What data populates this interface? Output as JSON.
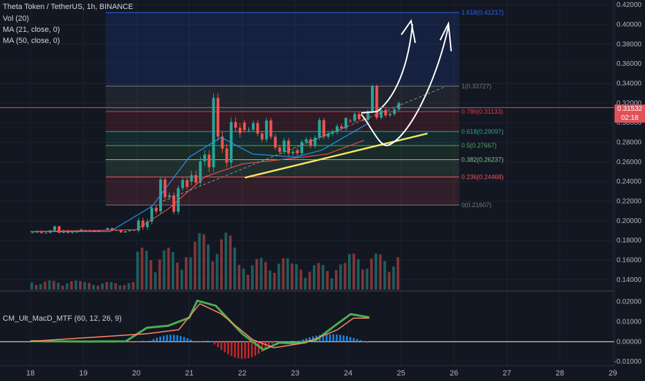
{
  "header": {
    "title": "Theta Token / TetherUS, 1h, BINANCE",
    "indicators": [
      "Vol (20)",
      "MA (21, close, 0)",
      "MA (50, close, 0)"
    ],
    "macd_label": "CM_Ult_MacD_MTF (60, 12, 26, 9)"
  },
  "price_tag": {
    "price": "0.31532",
    "countdown": "02:18"
  },
  "colors": {
    "background": "#131722",
    "up": "#26a69a",
    "down": "#ef5350",
    "ma21": "#2196f3",
    "ma50": "#e94d4d",
    "trendline": "#f5e663",
    "fib_1618": "#2962ff",
    "fib_1": "#787b86",
    "fib_0786": "#f23645",
    "fib_0618": "#22ab94",
    "fib_05": "#4caf50",
    "fib_0382": "#81c784",
    "fib_0236": "#f7525f",
    "fib_0": "#787b86"
  },
  "chart_data": [
    {
      "type": "candlestick",
      "title": "Theta Token / TetherUS, 1h, BINANCE",
      "x_axis": {
        "ticks": [
          "18",
          "19",
          "20",
          "21",
          "22",
          "23",
          "24",
          "25",
          "26",
          "27",
          "28",
          "29"
        ]
      },
      "y_axis": {
        "range": [
          0.13,
          0.425
        ],
        "ticks": [
          "0.42000",
          "0.40000",
          "0.38000",
          "0.36000",
          "0.34000",
          "0.32000",
          "0.30000",
          "0.28000",
          "0.26000",
          "0.24000",
          "0.22000",
          "0.20000",
          "0.18000",
          "0.16000",
          "0.14000"
        ]
      },
      "last_price": 0.31532,
      "ohlc_daily_approx": [
        {
          "day": "18",
          "open": 0.188,
          "high": 0.195,
          "low": 0.183,
          "close": 0.19
        },
        {
          "day": "19",
          "open": 0.19,
          "high": 0.193,
          "low": 0.186,
          "close": 0.19
        },
        {
          "day": "20",
          "open": 0.19,
          "high": 0.245,
          "low": 0.188,
          "close": 0.24
        },
        {
          "day": "21",
          "open": 0.24,
          "high": 0.33,
          "low": 0.236,
          "close": 0.3
        },
        {
          "day": "22",
          "open": 0.3,
          "high": 0.305,
          "low": 0.25,
          "close": 0.272
        },
        {
          "day": "23",
          "open": 0.272,
          "high": 0.305,
          "low": 0.256,
          "close": 0.302
        },
        {
          "day": "24",
          "open": 0.302,
          "high": 0.339,
          "low": 0.3,
          "close": 0.3153
        }
      ],
      "fibonacci": [
        {
          "level": "1.618",
          "price": 0.41217,
          "label": "1.618(0.41217)"
        },
        {
          "level": "1",
          "price": 0.33727,
          "label": "1(0.33727)"
        },
        {
          "level": "0.786",
          "price": 0.31133,
          "label": "0.786(0.31133)"
        },
        {
          "level": "0.618",
          "price": 0.29097,
          "label": "0.618(0.29097)"
        },
        {
          "level": "0.5",
          "price": 0.27667,
          "label": "0.5(0.27667)"
        },
        {
          "level": "0.382",
          "price": 0.26237,
          "label": "0.382(0.26237)"
        },
        {
          "level": "0.236",
          "price": 0.24468,
          "label": "0.236(0.24468)"
        },
        {
          "level": "0",
          "price": 0.21607,
          "label": "0(0.21607)"
        }
      ],
      "moving_averages": [
        {
          "name": "MA (21, close, 0)",
          "points": [
            [
              0,
              0.189
            ],
            [
              1.5,
              0.189
            ],
            [
              2.3,
              0.215
            ],
            [
              3,
              0.265
            ],
            [
              3.6,
              0.285
            ],
            [
              4.2,
              0.268
            ],
            [
              5,
              0.265
            ],
            [
              5.5,
              0.272
            ],
            [
              6.4,
              0.3
            ]
          ]
        },
        {
          "name": "MA (50, close, 0)",
          "points": [
            [
              0,
              0.189
            ],
            [
              2,
              0.191
            ],
            [
              2.6,
              0.212
            ],
            [
              3.3,
              0.245
            ],
            [
              4,
              0.258
            ],
            [
              5,
              0.264
            ],
            [
              5.6,
              0.268
            ],
            [
              6.3,
              0.282
            ]
          ]
        }
      ],
      "annotations": [
        {
          "type": "trendline",
          "from": [
            4.05,
            0.244
          ],
          "to": [
            7.5,
            0.289
          ]
        },
        {
          "type": "dashed_extension",
          "from": [
            2.5,
            0.22
          ],
          "to": [
            7.85,
            0.337
          ]
        },
        {
          "type": "projection_arrows",
          "note": "hand-drawn upward arrows"
        }
      ]
    },
    {
      "type": "bar",
      "title": "Vol (20)",
      "volume_daily_relative": [
        0.12,
        0.1,
        0.55,
        0.75,
        0.42,
        0.35,
        0.48
      ]
    },
    {
      "type": "line",
      "title": "CM_Ult_MacD_MTF (60, 12, 26, 9)",
      "y_axis": {
        "range": [
          -0.012,
          0.024
        ],
        "ticks": [
          "0.02000",
          "0.01000",
          "0.00000",
          "-0.01000"
        ]
      },
      "macd_points": [
        [
          0,
          0.0003
        ],
        [
          1,
          0.0001
        ],
        [
          1.8,
          0.0002
        ],
        [
          2.2,
          0.007
        ],
        [
          2.6,
          0.008
        ],
        [
          3,
          0.012
        ],
        [
          3.15,
          0.0205
        ],
        [
          3.5,
          0.018
        ],
        [
          4,
          0.004
        ],
        [
          4.4,
          -0.004
        ],
        [
          4.7,
          -0.0005
        ],
        [
          5,
          -0.0008
        ],
        [
          5.4,
          0.001
        ],
        [
          5.8,
          0.009
        ],
        [
          6.05,
          0.0138
        ],
        [
          6.4,
          0.0122
        ]
      ],
      "signal_points": [
        [
          0,
          0.0002
        ],
        [
          2.2,
          0.004
        ],
        [
          2.8,
          0.006
        ],
        [
          3.2,
          0.019
        ],
        [
          3.6,
          0.014
        ],
        [
          4.2,
          0.001
        ],
        [
          4.6,
          -0.003
        ],
        [
          5.2,
          -0.0005
        ],
        [
          5.8,
          0.006
        ],
        [
          6.1,
          0.0118
        ],
        [
          6.4,
          0.0118
        ]
      ]
    }
  ]
}
